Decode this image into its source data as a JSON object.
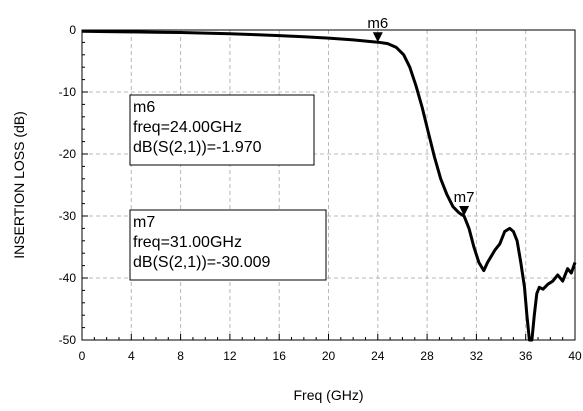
{
  "chart_data": {
    "type": "line",
    "title": "",
    "xlabel": "Freq (GHz)",
    "ylabel": "INSERTION LOSS (dB)",
    "xlim": [
      0,
      40
    ],
    "ylim": [
      -50,
      0
    ],
    "x_ticks": [
      "0",
      "4",
      "8",
      "12",
      "16",
      "20",
      "24",
      "28",
      "32",
      "36",
      "40"
    ],
    "y_ticks": [
      "0",
      "-10",
      "-20",
      "-30",
      "-40",
      "-50"
    ],
    "grid": true,
    "series": [
      {
        "x": [
          0,
          2,
          4,
          6,
          8,
          10,
          12,
          14,
          16,
          18,
          20,
          22,
          24,
          24.8,
          25.5,
          26.1,
          26.6,
          27.1,
          27.6,
          28.1,
          28.6,
          29.1,
          29.6,
          30.1,
          30.6,
          31.0,
          31.4,
          31.8,
          32.2,
          32.6,
          32.9,
          33.2,
          33.5,
          33.9,
          34.3,
          34.7,
          35.0,
          35.3,
          35.6,
          35.9,
          36.1,
          36.3,
          36.5,
          36.7,
          36.9,
          37.1,
          37.4,
          37.8,
          38.2,
          38.6,
          39.0,
          39.4,
          39.7,
          40.0
        ],
        "y": [
          -0.2,
          -0.25,
          -0.3,
          -0.35,
          -0.4,
          -0.5,
          -0.6,
          -0.75,
          -0.9,
          -1.1,
          -1.3,
          -1.6,
          -1.97,
          -2.2,
          -2.8,
          -4.0,
          -6.0,
          -9.0,
          -12.5,
          -16.5,
          -20.5,
          -24.0,
          -26.5,
          -28.5,
          -29.5,
          -30.009,
          -32.0,
          -35.0,
          -37.5,
          -38.8,
          -37.5,
          -36.5,
          -35.5,
          -34.5,
          -32.5,
          -32.0,
          -32.5,
          -34.0,
          -37.5,
          -41.5,
          -46.0,
          -50.0,
          -50.0,
          -46.0,
          -42.5,
          -41.5,
          -41.8,
          -41.0,
          -40.5,
          -39.5,
          -40.5,
          -38.5,
          -39.2,
          -37.5
        ]
      }
    ],
    "markers": [
      {
        "name": "m6",
        "x": 24.0,
        "y": -1.97,
        "freq_text": "freq=24.00GHz",
        "db_text": "dB(S(2,1))=-1.970"
      },
      {
        "name": "m7",
        "x": 31.0,
        "y": -30.009,
        "freq_text": "freq=31.00GHz",
        "db_text": "dB(S(2,1))=-30.009"
      }
    ]
  }
}
